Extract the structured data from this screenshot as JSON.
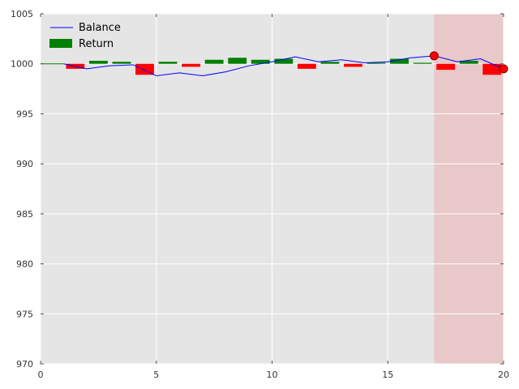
{
  "chart_data": {
    "type": "line",
    "title": "",
    "xlabel": "",
    "ylabel": "",
    "xlim": [
      0,
      20
    ],
    "ylim": [
      970,
      1005
    ],
    "x_ticks": [
      0,
      5,
      10,
      15,
      20
    ],
    "y_ticks": [
      970,
      975,
      980,
      985,
      990,
      995,
      1000,
      1005
    ],
    "x_tick_labels": [
      "0",
      "5",
      "10",
      "15",
      "20"
    ],
    "y_tick_labels": [
      "970",
      "975",
      "980",
      "985",
      "990",
      "995",
      "1000",
      "1005"
    ],
    "grid": true,
    "legend_position": "top-left",
    "colors": {
      "background": "#e5e5e5",
      "balance": "#0000ff",
      "positive_return": "#008000",
      "negative_return": "#ff0000",
      "highlight_region": "#e8c8c8",
      "baseline": "#008000"
    },
    "series": [
      {
        "name": "Balance",
        "kind": "line",
        "x": [
          1,
          2,
          3,
          4,
          5,
          6,
          7,
          8,
          9,
          10,
          11,
          12,
          13,
          14,
          15,
          16,
          17,
          18,
          19,
          20
        ],
        "values": [
          1000.0,
          999.5,
          999.8,
          999.9,
          998.8,
          999.1,
          998.8,
          999.2,
          999.8,
          1000.2,
          1000.7,
          1000.2,
          1000.4,
          1000.1,
          1000.2,
          1000.6,
          1000.8,
          1000.2,
          1000.5,
          999.5
        ]
      },
      {
        "name": "Return",
        "kind": "bar",
        "x": [
          1.5,
          2.5,
          3.5,
          4.5,
          5.5,
          6.5,
          7.5,
          8.5,
          9.5,
          10.5,
          11.5,
          12.5,
          13.5,
          14.5,
          15.5,
          16.5,
          17.5,
          18.5,
          19.5
        ],
        "values": [
          -0.5,
          0.3,
          0.2,
          -1.1,
          0.2,
          -0.3,
          0.4,
          0.6,
          0.4,
          0.5,
          -0.5,
          0.2,
          -0.3,
          0.1,
          0.5,
          0.1,
          -0.6,
          0.3,
          -1.1
        ]
      }
    ],
    "highlight_region": {
      "x_start": 17,
      "x_end": 20
    },
    "markers": [
      {
        "x": 17,
        "y": 1000.8
      },
      {
        "x": 20,
        "y": 999.5
      }
    ]
  }
}
